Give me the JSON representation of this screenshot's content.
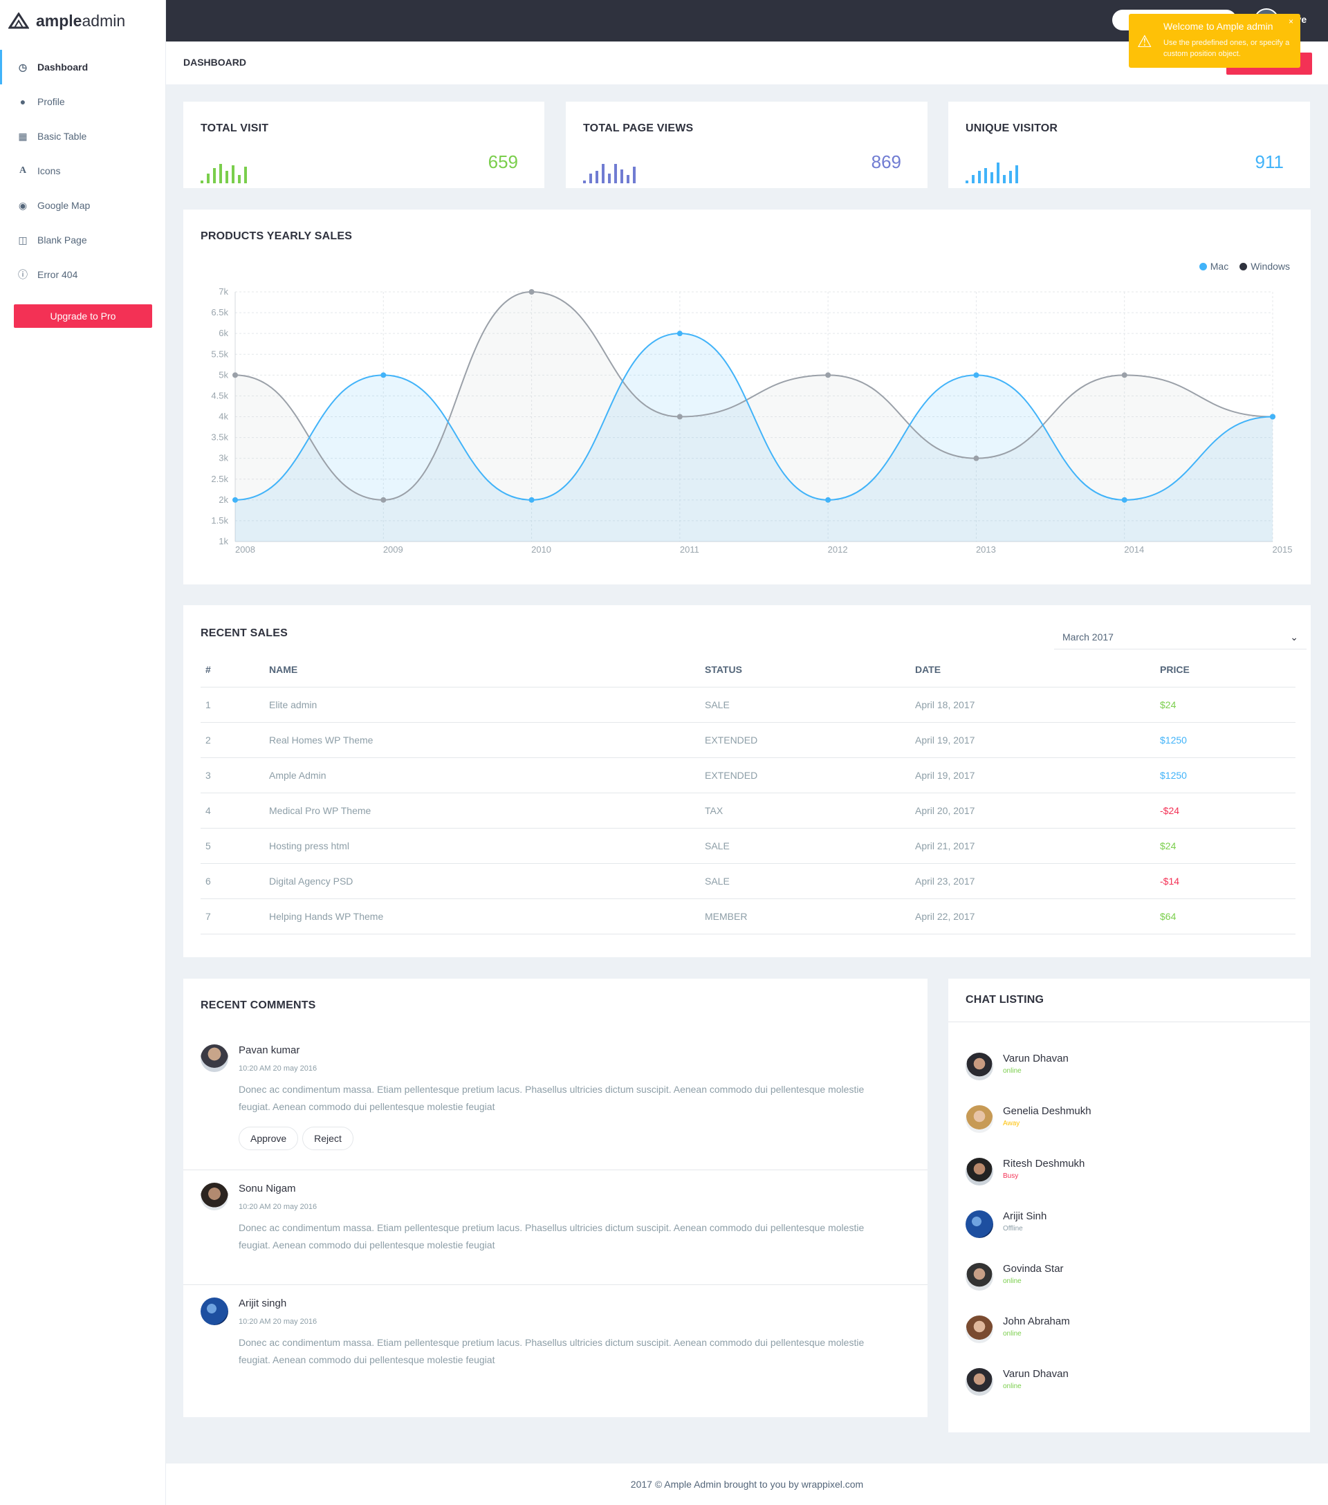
{
  "brand": {
    "name_bold": "ample",
    "name_light": "admin"
  },
  "sidebar": {
    "items": [
      {
        "label": "Dashboard",
        "icon": "clock-icon",
        "glyph": "◷"
      },
      {
        "label": "Profile",
        "icon": "user-icon",
        "glyph": "👤"
      },
      {
        "label": "Basic Table",
        "icon": "table-icon",
        "glyph": "▦"
      },
      {
        "label": "Icons",
        "icon": "font-icon",
        "glyph": "A"
      },
      {
        "label": "Google Map",
        "icon": "globe-icon",
        "glyph": "◉"
      },
      {
        "label": "Blank Page",
        "icon": "columns-icon",
        "glyph": "◫"
      },
      {
        "label": "Error 404",
        "icon": "info-icon",
        "glyph": "ⓘ"
      }
    ],
    "upgrade_label": "Upgrade to Pro"
  },
  "topbar": {
    "user_name_partial": "eave"
  },
  "toast": {
    "title": "Welcome to Ample admin",
    "message": "Use the predefined ones, or specify a custom position object.",
    "close": "×",
    "icon": "warning-icon"
  },
  "page": {
    "title": "DASHBOARD"
  },
  "stats": [
    {
      "title": "TOTAL VISIT",
      "value": "659",
      "color": "#7ace4c"
    },
    {
      "title": "TOTAL PAGE VIEWS",
      "value": "869",
      "color": "#707cd2"
    },
    {
      "title": "UNIQUE VISITOR",
      "value": "911",
      "color": "#41b3f9"
    }
  ],
  "yearly": {
    "title": "PRODUCTS YEARLY SALES",
    "legend": [
      "Mac",
      "Windows"
    ]
  },
  "chart_data": {
    "type": "area",
    "title": "PRODUCTS YEARLY SALES",
    "x": [
      "2008",
      "2009",
      "2010",
      "2011",
      "2012",
      "2013",
      "2014",
      "2015"
    ],
    "y_ticks": [
      "1k",
      "1.5k",
      "2k",
      "2.5k",
      "3k",
      "3.5k",
      "4k",
      "4.5k",
      "5k",
      "5.5k",
      "6k",
      "6.5k",
      "7k"
    ],
    "ylim": [
      1000,
      7000
    ],
    "grid": true,
    "legend_position": "top-right",
    "series": [
      {
        "name": "Mac",
        "color": "#41b3f9",
        "values": [
          2000,
          5000,
          2000,
          6000,
          2000,
          5000,
          2000,
          4000
        ]
      },
      {
        "name": "Windows",
        "color": "#9aa0a8",
        "values": [
          5000,
          2000,
          7000,
          4000,
          5000,
          3000,
          5000,
          4000
        ]
      }
    ]
  },
  "sales": {
    "title": "RECENT SALES",
    "month": "March 2017",
    "headers": [
      "#",
      "NAME",
      "STATUS",
      "DATE",
      "PRICE"
    ],
    "rows": [
      {
        "n": "1",
        "name": "Elite admin",
        "status": "SALE",
        "date": "April 18, 2017",
        "price": "$24",
        "color": "#7ace4c"
      },
      {
        "n": "2",
        "name": "Real Homes WP Theme",
        "status": "EXTENDED",
        "date": "April 19, 2017",
        "price": "$1250",
        "color": "#41b3f9"
      },
      {
        "n": "3",
        "name": "Ample Admin",
        "status": "EXTENDED",
        "date": "April 19, 2017",
        "price": "$1250",
        "color": "#41b3f9"
      },
      {
        "n": "4",
        "name": "Medical Pro WP Theme",
        "status": "TAX",
        "date": "April 20, 2017",
        "price": "-$24",
        "color": "#f33155"
      },
      {
        "n": "5",
        "name": "Hosting press html",
        "status": "SALE",
        "date": "April 21, 2017",
        "price": "$24",
        "color": "#7ace4c"
      },
      {
        "n": "6",
        "name": "Digital Agency PSD",
        "status": "SALE",
        "date": "April 23, 2017",
        "price": "-$14",
        "color": "#f33155"
      },
      {
        "n": "7",
        "name": "Helping Hands WP Theme",
        "status": "MEMBER",
        "date": "April 22, 2017",
        "price": "$64",
        "color": "#7ace4c"
      }
    ]
  },
  "comments": {
    "title": "RECENT COMMENTS",
    "approve": "Approve",
    "reject": "Reject",
    "items": [
      {
        "name": "Pavan kumar",
        "time": "10:20 AM 20 may 2016",
        "text": "Donec ac condimentum massa. Etiam pellentesque pretium lacus. Phasellus ultricies dictum suscipit. Aenean commodo dui pellentesque molestie feugiat. Aenean commodo dui pellentesque molestie feugiat"
      },
      {
        "name": "Sonu Nigam",
        "time": "10:20 AM 20 may 2016",
        "text": "Donec ac condimentum massa. Etiam pellentesque pretium lacus. Phasellus ultricies dictum suscipit. Aenean commodo dui pellentesque molestie feugiat. Aenean commodo dui pellentesque molestie feugiat"
      },
      {
        "name": "Arijit singh",
        "time": "10:20 AM 20 may 2016",
        "text": "Donec ac condimentum massa. Etiam pellentesque pretium lacus. Phasellus ultricies dictum suscipit. Aenean commodo dui pellentesque molestie feugiat. Aenean commodo dui pellentesque molestie feugiat"
      }
    ]
  },
  "chat": {
    "title": "CHAT LISTING",
    "items": [
      {
        "name": "Varun Dhavan",
        "status": "online",
        "color": "#7ace4c"
      },
      {
        "name": "Genelia Deshmukh",
        "status": "Away",
        "color": "#fec107"
      },
      {
        "name": "Ritesh Deshmukh",
        "status": "Busy",
        "color": "#f33155"
      },
      {
        "name": "Arijit Sinh",
        "status": "Offline",
        "color": "#8d9ea7"
      },
      {
        "name": "Govinda Star",
        "status": "online",
        "color": "#7ace4c"
      },
      {
        "name": "John Abraham",
        "status": "online",
        "color": "#7ace4c"
      },
      {
        "name": "Varun Dhavan",
        "status": "online",
        "color": "#7ace4c"
      }
    ]
  },
  "footer": {
    "text": "2017 © Ample Admin brought to you by wrappixel.com"
  }
}
